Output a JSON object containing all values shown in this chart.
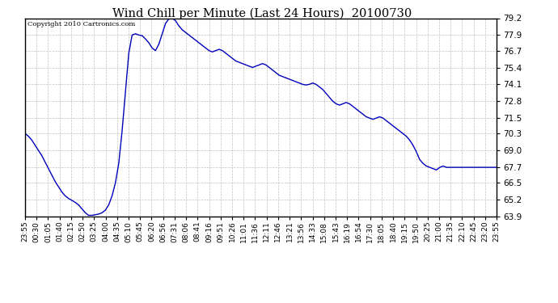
{
  "title": "Wind Chill per Minute (Last 24 Hours)  20100730",
  "copyright": "Copyright 2010 Cartronics.com",
  "line_color": "#0000BB",
  "background_color": "#ffffff",
  "grid_color": "#bbbbbb",
  "ylim": [
    63.9,
    79.2
  ],
  "yticks": [
    63.9,
    65.2,
    66.5,
    67.7,
    69.0,
    70.3,
    71.5,
    72.8,
    74.1,
    75.4,
    76.7,
    77.9,
    79.2
  ],
  "xtick_labels": [
    "23:55",
    "00:30",
    "01:05",
    "01:40",
    "02:15",
    "02:50",
    "03:25",
    "04:00",
    "04:35",
    "05:10",
    "05:45",
    "06:20",
    "06:56",
    "07:31",
    "08:06",
    "08:41",
    "09:16",
    "09:51",
    "10:26",
    "11:01",
    "11:36",
    "12:11",
    "12:46",
    "13:21",
    "13:56",
    "14:33",
    "15:08",
    "15:43",
    "16:19",
    "16:54",
    "17:30",
    "18:05",
    "18:40",
    "19:15",
    "19:50",
    "20:25",
    "21:00",
    "21:35",
    "22:10",
    "22:45",
    "23:20",
    "23:55"
  ],
  "curve": [
    70.3,
    70.1,
    69.8,
    69.4,
    69.0,
    68.6,
    68.1,
    67.6,
    67.1,
    66.6,
    66.2,
    65.8,
    65.5,
    65.3,
    65.15,
    65.0,
    64.8,
    64.5,
    64.2,
    64.0,
    64.0,
    64.05,
    64.1,
    64.2,
    64.4,
    64.8,
    65.5,
    66.5,
    68.0,
    70.5,
    73.5,
    76.5,
    77.9,
    78.0,
    77.9,
    77.85,
    77.6,
    77.3,
    76.9,
    76.7,
    77.2,
    78.0,
    78.8,
    79.15,
    79.2,
    79.0,
    78.6,
    78.3,
    78.1,
    77.9,
    77.7,
    77.5,
    77.3,
    77.1,
    76.9,
    76.7,
    76.6,
    76.7,
    76.8,
    76.7,
    76.5,
    76.3,
    76.1,
    75.9,
    75.8,
    75.7,
    75.6,
    75.5,
    75.4,
    75.5,
    75.6,
    75.7,
    75.6,
    75.4,
    75.2,
    75.0,
    74.8,
    74.7,
    74.6,
    74.5,
    74.4,
    74.3,
    74.2,
    74.1,
    74.05,
    74.1,
    74.2,
    74.1,
    73.9,
    73.7,
    73.4,
    73.1,
    72.8,
    72.6,
    72.5,
    72.6,
    72.7,
    72.6,
    72.4,
    72.2,
    72.0,
    71.8,
    71.6,
    71.5,
    71.4,
    71.5,
    71.6,
    71.5,
    71.3,
    71.1,
    70.9,
    70.7,
    70.5,
    70.3,
    70.1,
    69.8,
    69.4,
    68.9,
    68.3,
    68.0,
    67.8,
    67.7,
    67.6,
    67.5,
    67.7,
    67.8,
    67.7,
    67.7,
    67.7,
    67.7,
    67.7,
    67.7,
    67.7,
    67.7,
    67.7,
    67.7,
    67.7,
    67.7,
    67.7,
    67.7,
    67.7,
    67.7
  ]
}
